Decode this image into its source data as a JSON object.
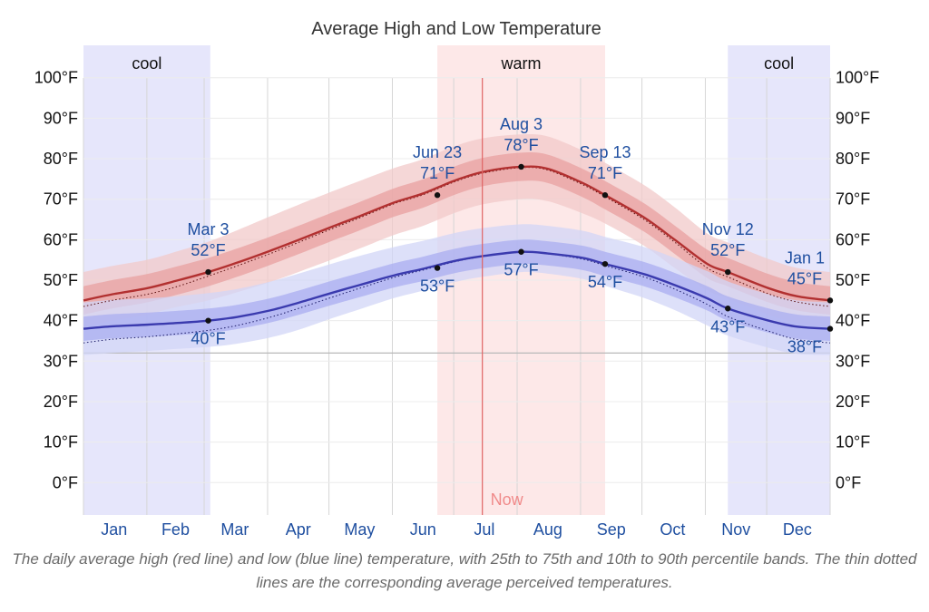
{
  "chart_data": {
    "type": "line",
    "title": "Average High and Low Temperature",
    "caption": "The daily average high (red line) and low (blue line) temperature, with 25th to 75th and 10th to 90th percentile bands. The thin dotted lines are the corresponding average perceived temperatures.",
    "ylim": [
      -8,
      108
    ],
    "yticks": [
      "0°F",
      "10°F",
      "20°F",
      "30°F",
      "40°F",
      "50°F",
      "60°F",
      "70°F",
      "80°F",
      "90°F",
      "100°F"
    ],
    "ytick_values": [
      0,
      10,
      20,
      30,
      40,
      50,
      60,
      70,
      80,
      90,
      100
    ],
    "months": [
      "Jan",
      "Feb",
      "Mar",
      "Apr",
      "May",
      "Jun",
      "Jul",
      "Aug",
      "Sep",
      "Oct",
      "Nov",
      "Dec"
    ],
    "x_unit": "day of year",
    "xlim": [
      1,
      366
    ],
    "reference_line_value": 32,
    "seasons": [
      {
        "label": "cool",
        "start_day": 1,
        "end_day": 63,
        "color": "#e6e6fb"
      },
      {
        "label": "warm",
        "start_day": 174,
        "end_day": 256,
        "color": "#fde8e8"
      },
      {
        "label": "cool",
        "start_day": 316,
        "end_day": 366,
        "color": "#e6e6fb"
      }
    ],
    "now_marker": {
      "label": "Now",
      "day": 196,
      "color": "#e06464"
    },
    "x": [
      1,
      15,
      32,
      46,
      62,
      76,
      92,
      106,
      122,
      136,
      153,
      167,
      183,
      197,
      215,
      228,
      245,
      256,
      275,
      290,
      306,
      316,
      336,
      350,
      366
    ],
    "series": [
      {
        "key": "high",
        "color": "#b23030",
        "values": [
          45,
          46.5,
          48,
          49.8,
          52,
          54.3,
          57.2,
          59.9,
          63.1,
          65.8,
          69.2,
          71.4,
          74.7,
          76.8,
          78,
          77.5,
          74,
          71,
          65.5,
          60,
          54,
          52,
          48,
          46,
          45
        ],
        "feels_like": [
          43.5,
          45,
          46.5,
          48.3,
          51,
          53.5,
          56.5,
          59.3,
          62.6,
          65.4,
          68.9,
          71.1,
          74.4,
          76.5,
          77.8,
          77.2,
          73.6,
          70.6,
          65,
          59.4,
          53,
          50.8,
          46.6,
          44.6,
          43.5
        ],
        "p25": [
          41.5,
          43,
          44.5,
          46.3,
          48.5,
          50.8,
          53.7,
          56.4,
          59.6,
          62.3,
          65.7,
          67.9,
          71.2,
          73.3,
          74.5,
          74,
          70.5,
          67.5,
          62,
          56.5,
          50.5,
          48.5,
          44.5,
          42.5,
          41.5
        ],
        "p75": [
          48.5,
          50,
          51.5,
          53.3,
          55.5,
          57.8,
          60.7,
          63.4,
          66.6,
          69.3,
          72.7,
          74.9,
          78.2,
          80.3,
          81.5,
          81,
          77.5,
          74.5,
          69,
          63.5,
          57.5,
          55.5,
          51.5,
          49.5,
          48.5
        ],
        "p10": [
          38.5,
          40,
          41.5,
          43.3,
          45,
          47,
          49.5,
          52,
          55,
          57.8,
          61.2,
          63.4,
          66.7,
          68.8,
          70,
          69.5,
          66.5,
          64,
          58.5,
          53,
          47.5,
          45.5,
          41.5,
          39.5,
          38.5
        ],
        "p90": [
          52,
          53.5,
          55,
          57,
          59.5,
          62.3,
          65.7,
          68.6,
          71.8,
          74.5,
          77.7,
          79.9,
          83.2,
          85.1,
          86,
          85.5,
          82,
          79,
          73.5,
          68,
          61.5,
          59.3,
          55.2,
          53,
          52
        ]
      },
      {
        "key": "low",
        "color": "#3a3aae",
        "values": [
          38,
          38.6,
          39,
          39.4,
          40,
          40.9,
          42.5,
          44.4,
          46.8,
          48.8,
          51.2,
          52.8,
          54.8,
          56,
          57,
          56.6,
          55.5,
          54,
          51.5,
          48.8,
          45.5,
          43,
          40,
          38.5,
          38
        ],
        "feels_like": [
          34.5,
          35.4,
          36,
          36.7,
          37.6,
          38.8,
          40.8,
          43,
          45.7,
          48,
          50.7,
          52.5,
          54.6,
          55.9,
          56.9,
          56.5,
          55.2,
          53.6,
          50.8,
          47.8,
          44,
          41,
          37.4,
          35.3,
          34.5
        ],
        "p25": [
          35,
          35.6,
          36,
          36.4,
          37,
          37.9,
          39.5,
          41.4,
          43.8,
          45.8,
          48.2,
          49.8,
          51.8,
          53,
          54,
          53.6,
          52.5,
          51,
          48.5,
          45.8,
          42.5,
          40,
          37,
          35.5,
          35
        ],
        "p75": [
          41,
          41.6,
          42,
          42.4,
          43,
          43.9,
          45.5,
          47.4,
          49.8,
          51.8,
          54.2,
          55.8,
          57.8,
          59,
          60,
          59.6,
          58.5,
          57,
          54.5,
          51.8,
          48.5,
          46,
          43,
          41.5,
          41
        ],
        "p10": [
          31.5,
          32,
          32.5,
          33,
          33.5,
          34.3,
          35.8,
          37.7,
          40.5,
          42.8,
          45.6,
          47.4,
          49.6,
          50.9,
          52,
          51.6,
          50.3,
          48.6,
          45.6,
          42.6,
          38.8,
          36.3,
          33.3,
          31.8,
          31.5
        ],
        "p90": [
          44.5,
          45.1,
          45.5,
          46,
          46.8,
          47.8,
          49.6,
          51.6,
          54,
          56,
          58.2,
          59.7,
          61.7,
          62.9,
          63.8,
          63.4,
          62.2,
          60.7,
          58.2,
          55.5,
          52.2,
          49.7,
          46.5,
          45,
          44.5
        ]
      }
    ],
    "annotations": [
      {
        "series": "high",
        "day": 62,
        "value": 52,
        "date": "Mar 3",
        "label": "52°F",
        "place": "above"
      },
      {
        "series": "high",
        "day": 174,
        "value": 71,
        "date": "Jun 23",
        "label": "71°F",
        "place": "above"
      },
      {
        "series": "high",
        "day": 215,
        "value": 78,
        "date": "Aug 3",
        "label": "78°F",
        "place": "above"
      },
      {
        "series": "high",
        "day": 256,
        "value": 71,
        "date": "Sep 13",
        "label": "71°F",
        "place": "above"
      },
      {
        "series": "high",
        "day": 316,
        "value": 52,
        "date": "Nov 12",
        "label": "52°F",
        "place": "above"
      },
      {
        "series": "high",
        "day": 366,
        "value": 45,
        "date": "Jan 1",
        "label": "45°F",
        "place": "above-left"
      },
      {
        "series": "low",
        "day": 62,
        "value": 40,
        "date": "",
        "label": "40°F",
        "place": "below"
      },
      {
        "series": "low",
        "day": 174,
        "value": 53,
        "date": "",
        "label": "53°F",
        "place": "below"
      },
      {
        "series": "low",
        "day": 215,
        "value": 57,
        "date": "",
        "label": "57°F",
        "place": "below"
      },
      {
        "series": "low",
        "day": 256,
        "value": 54,
        "date": "",
        "label": "54°F",
        "place": "below"
      },
      {
        "series": "low",
        "day": 316,
        "value": 43,
        "date": "",
        "label": "43°F",
        "place": "below"
      },
      {
        "series": "low",
        "day": 366,
        "value": 38,
        "date": "",
        "label": "38°F",
        "place": "below-left"
      }
    ],
    "colors": {
      "high_band_inner": "#e8a0a0",
      "high_band_outer": "#f2c9c9",
      "low_band_inner": "#a9aef0",
      "low_band_outer": "#d2d5f7",
      "label_blue": "#1f4fa0"
    }
  }
}
